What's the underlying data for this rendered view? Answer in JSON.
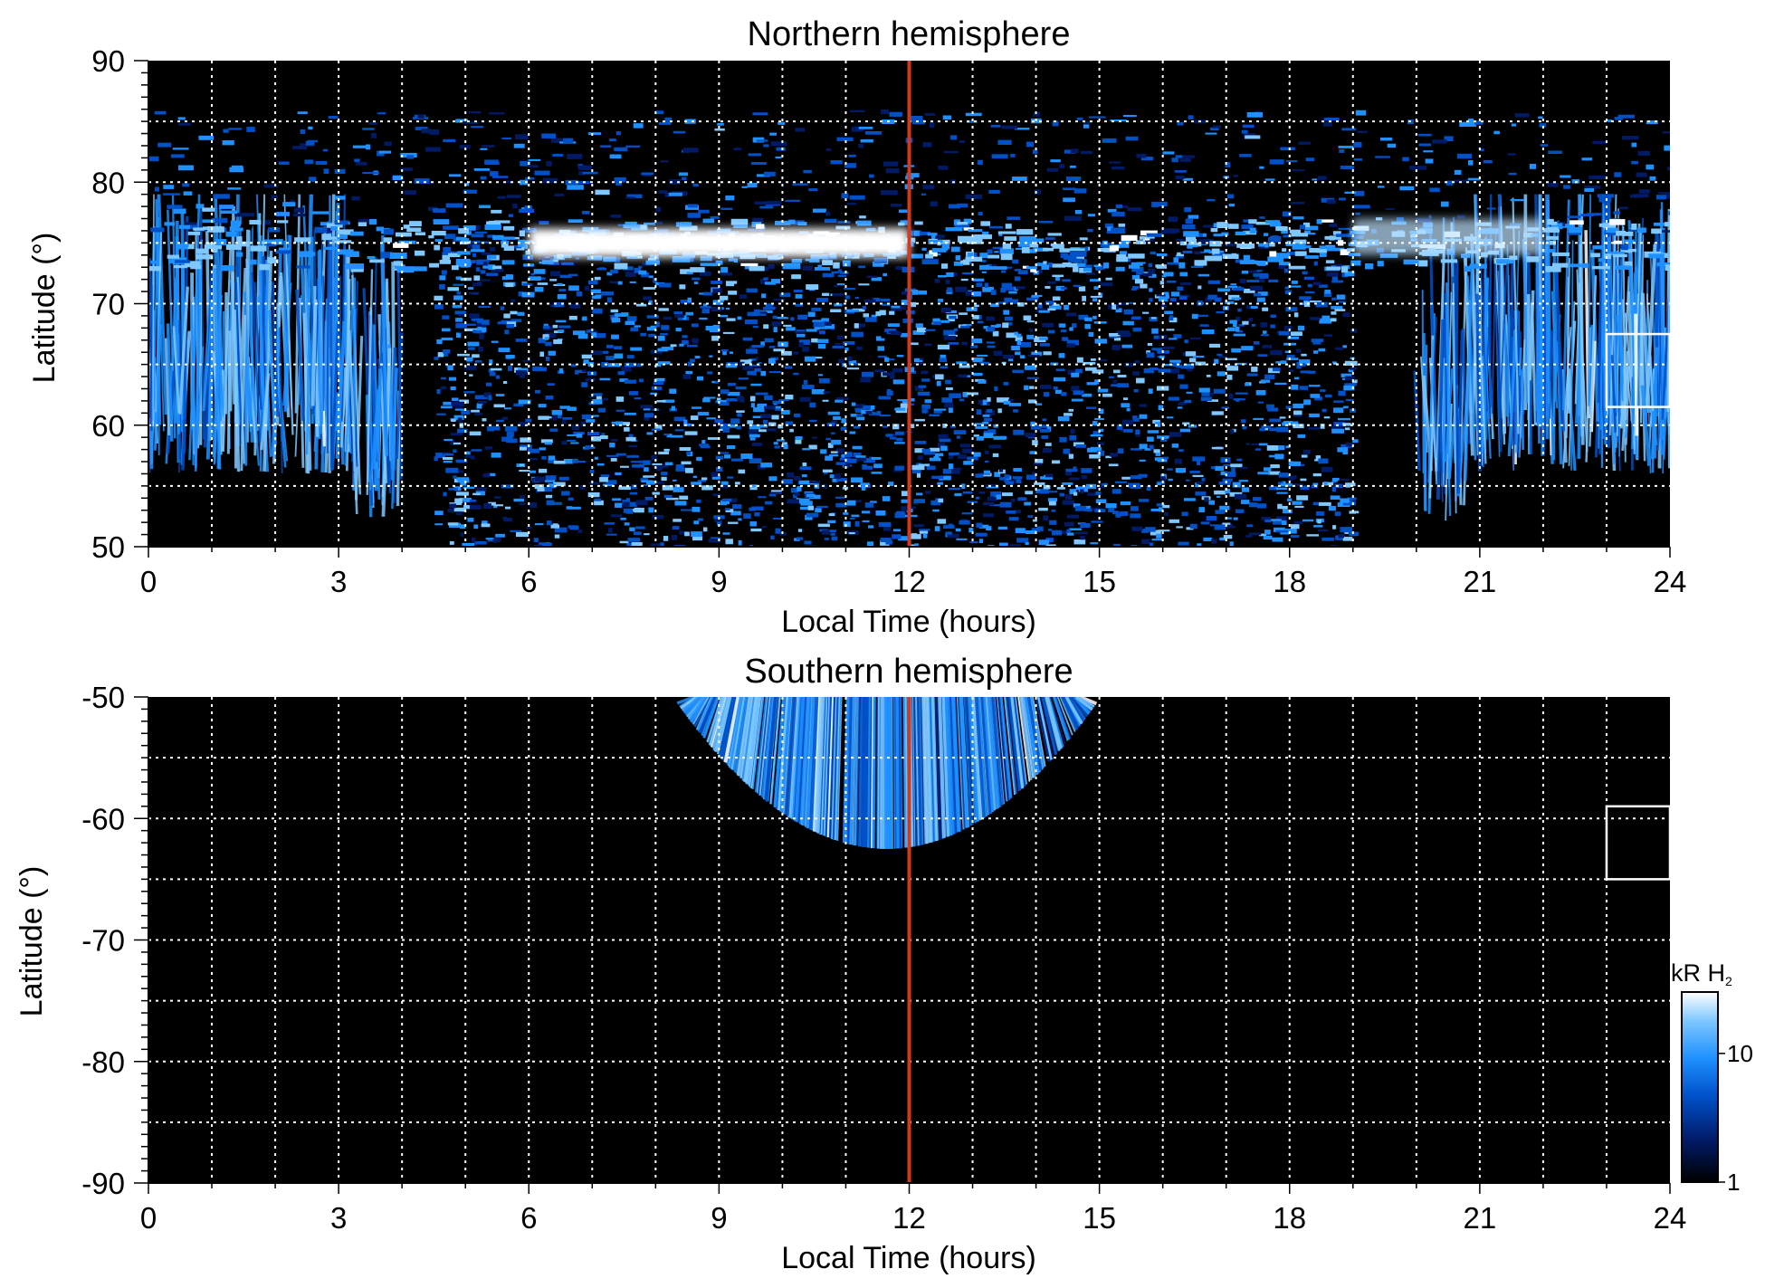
{
  "chart_data": [
    {
      "type": "heatmap",
      "title": "Northern hemisphere",
      "xlabel": "Local Time (hours)",
      "ylabel": "Latitude (°)",
      "xlim": [
        0,
        24
      ],
      "ylim": [
        50,
        90
      ],
      "xticks": [
        "0",
        "3",
        "6",
        "9",
        "12",
        "15",
        "18",
        "21",
        "24"
      ],
      "yticks": [
        "50",
        "60",
        "70",
        "80",
        "90"
      ],
      "grid": true,
      "colormap": "black-blue-white",
      "highlight_line": {
        "x": 12,
        "color": "#d23a1e"
      },
      "reference_box": {
        "x": [
          23,
          24
        ],
        "y": [
          61.5,
          67.5
        ]
      },
      "features": {
        "main_oval": {
          "lat_center": 75,
          "brightest_lt": [
            6,
            12
          ],
          "peak_kR": 25
        },
        "diffuse_region_lt": [
          4.5,
          19
        ],
        "streak_regions_lt": [
          [
            0,
            4
          ],
          [
            20,
            24
          ]
        ]
      }
    },
    {
      "type": "heatmap",
      "title": "Southern hemisphere",
      "xlabel": "Local Time (hours)",
      "ylabel": "Latitude (°)",
      "xlim": [
        0,
        24
      ],
      "ylim": [
        -90,
        -50
      ],
      "xticks": [
        "0",
        "3",
        "6",
        "9",
        "12",
        "15",
        "18",
        "21",
        "24"
      ],
      "yticks": [
        "-50",
        "-60",
        "-70",
        "-80",
        "-90"
      ],
      "grid": true,
      "colormap": "black-blue-white",
      "highlight_line": {
        "x": 12,
        "color": "#d23a1e"
      },
      "reference_box": {
        "x": [
          23,
          24
        ],
        "y": [
          -65,
          -59
        ]
      },
      "features": {
        "emission_region_lt": [
          8.6,
          14.7
        ],
        "emission_lat_min": -62.5
      }
    }
  ],
  "colorbar": {
    "label_main": "kR H",
    "label_sub": "2",
    "scale": "log",
    "range": [
      1,
      30
    ],
    "ticks": [
      "1",
      "10"
    ],
    "colors": [
      "#000000",
      "#001a66",
      "#0050c8",
      "#1e90ff",
      "#7fc8ff",
      "#ffffff"
    ]
  }
}
